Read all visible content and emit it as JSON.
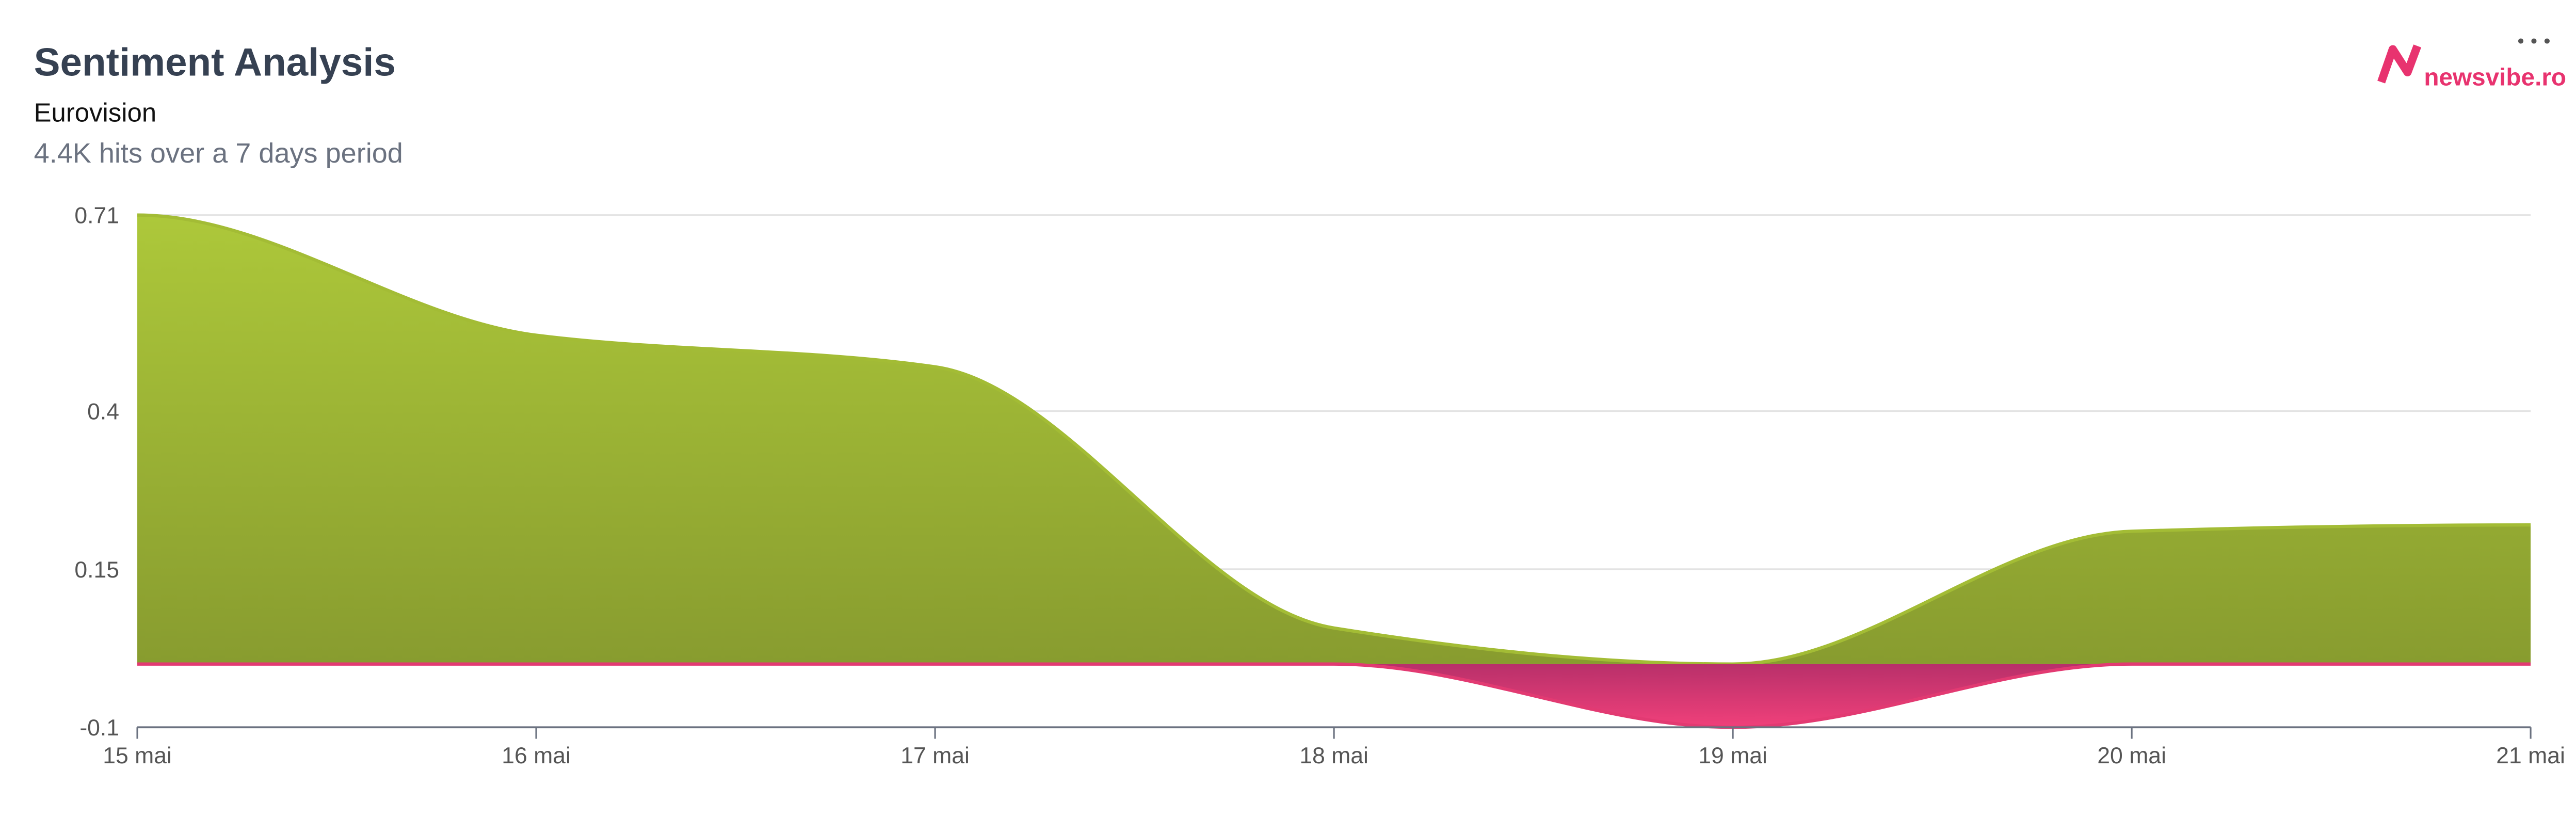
{
  "chart_data": {
    "type": "area",
    "title": "Sentiment Analysis",
    "subtitle": "Eurovision",
    "caption": "4.4K hits over a 7 days period",
    "brand": "newsvibe.ro",
    "categories": [
      "15 mai",
      "16 mai",
      "17 mai",
      "18 mai",
      "19 mai",
      "20 mai",
      "21 mai"
    ],
    "series": [
      {
        "color": "#a3bc35",
        "values": [
          0.71,
          0.52,
          0.47,
          0.057,
          0,
          0.21,
          0.22
        ]
      },
      {
        "color": "#e23a72",
        "values": [
          0,
          0,
          0,
          0,
          -0.1,
          0,
          0
        ]
      }
    ],
    "ylim": [
      -0.1,
      0.71
    ],
    "yticks": [
      0.71,
      0.4,
      0.15,
      -0.1
    ],
    "grid": true
  }
}
